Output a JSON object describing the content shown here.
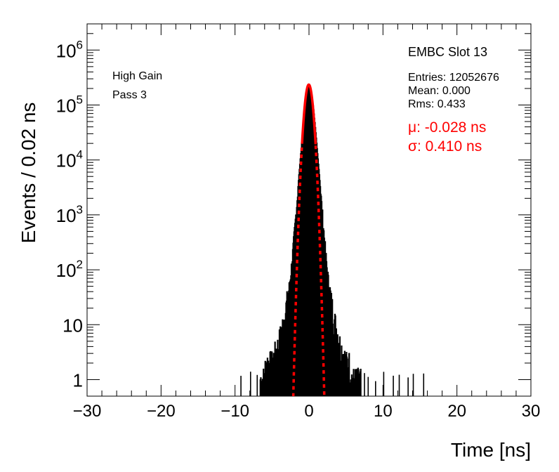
{
  "chart_data": {
    "type": "histogram",
    "xlabel": "Time [ns]",
    "ylabel": "Events / 0.02 ns",
    "xlim": [
      -30,
      30
    ],
    "ylim": [
      0.5,
      3000000
    ],
    "yscale": "log",
    "x_ticks": [
      "−30",
      "−20",
      "−10",
      "0",
      "10",
      "20",
      "30"
    ],
    "y_ticks": [
      {
        "base": "1",
        "exp": ""
      },
      {
        "base": "10",
        "exp": ""
      },
      {
        "base": "10",
        "exp": "2"
      },
      {
        "base": "10",
        "exp": "3"
      },
      {
        "base": "10",
        "exp": "4"
      },
      {
        "base": "10",
        "exp": "5"
      },
      {
        "base": "10",
        "exp": "6"
      }
    ],
    "y_tick_values": [
      1,
      10,
      100,
      1000,
      10000,
      100000,
      1000000
    ],
    "annotations": {
      "left": [
        "High Gain",
        "Pass 3"
      ],
      "title": "EMBC Slot 13",
      "stats": [
        "Entries: 12052676",
        "Mean: 0.000",
        "Rms: 0.433"
      ],
      "fit": [
        "μ: -0.028 ns",
        "σ: 0.410 ns"
      ]
    },
    "series": [
      {
        "style": "histogram",
        "color": "#000000",
        "x": [
          -6.6,
          -6.2,
          -5.8,
          -5.4,
          -5.0,
          -4.6,
          -4.2,
          -3.8,
          -3.4,
          -3.0,
          -2.6,
          -2.3,
          -2.0,
          -1.7,
          -1.4,
          -1.1,
          -0.8,
          -0.5,
          -0.25,
          0.0,
          0.25,
          0.5,
          0.8,
          1.1,
          1.4,
          1.7,
          2.0,
          2.3,
          2.6,
          3.0,
          3.4,
          3.8,
          4.2,
          4.6,
          5.0,
          5.4,
          5.8,
          6.2,
          6.6,
          7.0
        ],
        "values": [
          1,
          1,
          2,
          2,
          2,
          3,
          4,
          7,
          12,
          25,
          60,
          150,
          450,
          1400,
          5000,
          15000,
          45000,
          110000,
          190000,
          235000,
          190000,
          110000,
          45000,
          15000,
          5000,
          1400,
          450,
          150,
          60,
          25,
          12,
          7,
          4,
          3,
          2,
          2,
          1,
          1,
          1,
          1
        ],
        "isolated_events_x": [
          -9.2,
          -7.9,
          -7.0,
          7.5,
          8.0,
          9.0,
          10.1,
          11.4,
          12.2,
          13.4,
          14.1,
          15.5
        ]
      },
      {
        "style": "gaussian-fit",
        "color": "#ff0000",
        "mu": -0.028,
        "sigma": 0.41,
        "amplitude": 235000
      }
    ]
  }
}
